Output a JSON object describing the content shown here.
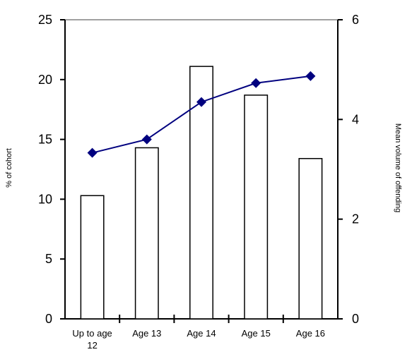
{
  "chart_data": {
    "type": "bar",
    "categories": [
      "Up to age 12",
      "Age 13",
      "Age 14",
      "Age 15",
      "Age 16"
    ],
    "series": [
      {
        "type": "bar",
        "axis": "left",
        "values": [
          10.3,
          14.3,
          21.1,
          18.7,
          13.4
        ]
      },
      {
        "type": "line",
        "axis": "right",
        "values": [
          3.33,
          3.6,
          4.35,
          4.73,
          4.87
        ]
      }
    ],
    "ylabel": "% of cohort",
    "y2label": "Mean volume of offending",
    "ylim": [
      0,
      25
    ],
    "y2lim": [
      0,
      6
    ],
    "yticks": [
      "0",
      "5",
      "10",
      "15",
      "20",
      "25"
    ],
    "y2ticks": [
      "0",
      "2",
      "4",
      "6"
    ],
    "grid": false,
    "legend": "none",
    "colors": {
      "bar_fill": "#ffffff",
      "bar_stroke": "#000000",
      "line": "#00007f",
      "marker": "#00007f",
      "top_border": "#808080"
    }
  }
}
